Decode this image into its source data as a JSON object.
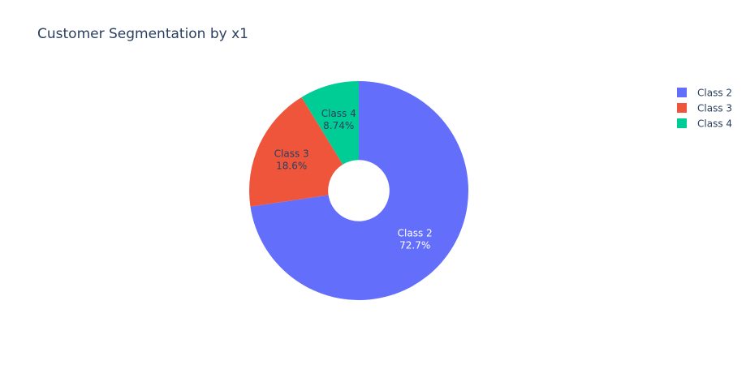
{
  "chart_data": {
    "type": "pie",
    "title": "Customer Segmentation by x1",
    "hole": 0.28,
    "slices": [
      {
        "label": "Class 2",
        "percent_text": "72.7%",
        "value": 72.66,
        "color": "#636efa",
        "text_color": "#ffffff"
      },
      {
        "label": "Class 3",
        "percent_text": "18.6%",
        "value": 18.6,
        "color": "#ef553b",
        "text_color": "#2a3f5f"
      },
      {
        "label": "Class 4",
        "percent_text": "8.74%",
        "value": 8.74,
        "color": "#00cc96",
        "text_color": "#2a3f5f"
      }
    ],
    "legend": {
      "position": "top-right",
      "items": [
        "Class 2",
        "Class 3",
        "Class 4"
      ]
    }
  }
}
